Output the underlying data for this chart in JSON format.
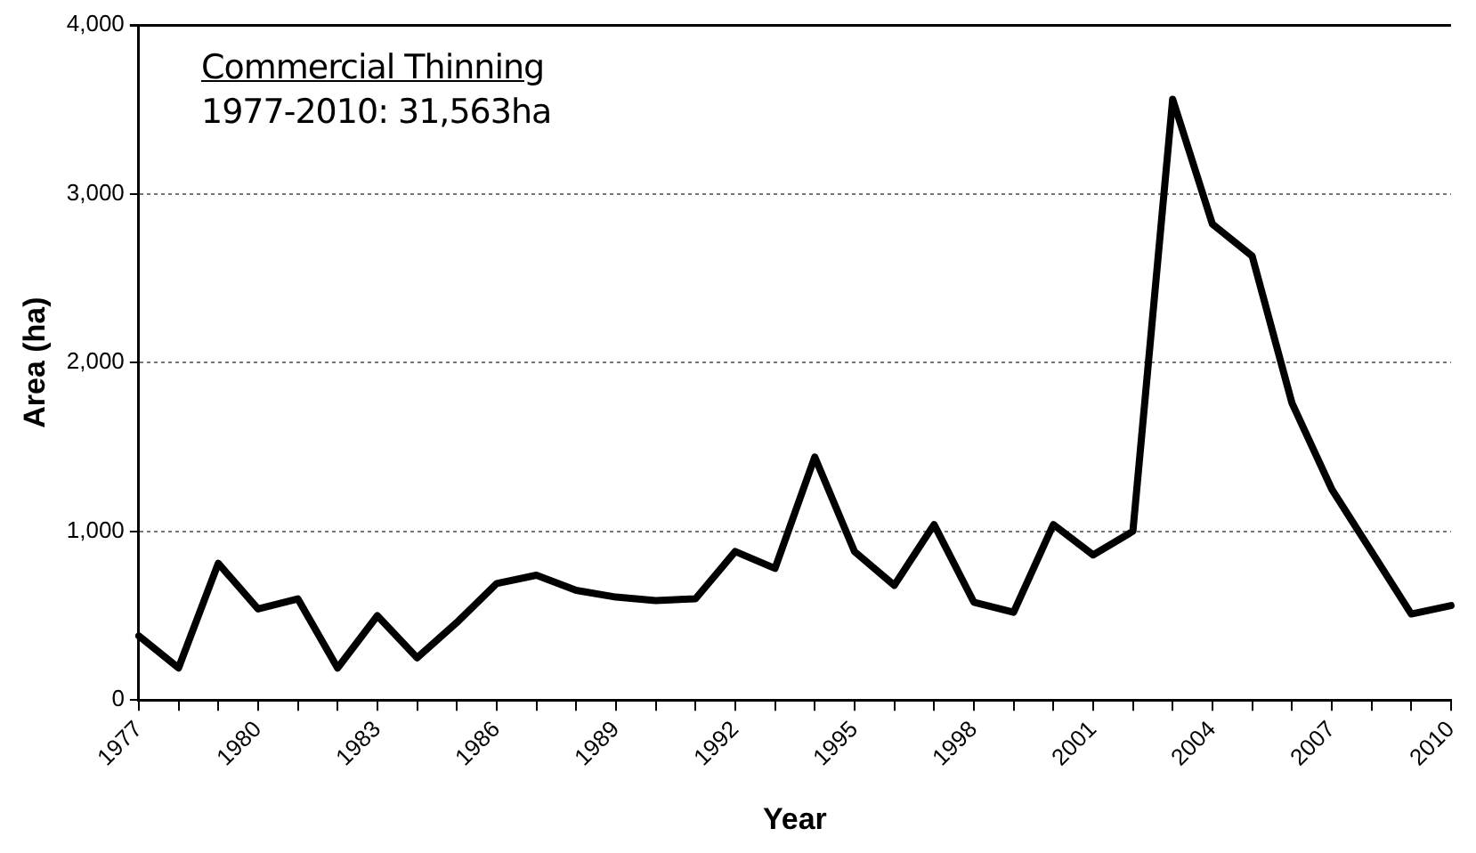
{
  "chart_data": {
    "type": "line",
    "title": "Commercial Thinning",
    "subtitle": "1977-2010: 31,563ha",
    "xlabel": "Year",
    "ylabel": "Area (ha)",
    "categories": [
      "1977",
      null,
      null,
      "1980",
      null,
      null,
      "1983",
      null,
      null,
      "1986",
      null,
      null,
      "1989",
      null,
      null,
      "1992",
      null,
      null,
      "1995",
      null,
      null,
      "1998",
      null,
      null,
      "2001",
      null,
      null,
      "2004",
      null,
      null,
      "2007",
      null,
      null,
      "2010"
    ],
    "series": [
      {
        "color": "#000000",
        "values": [
          380,
          190,
          810,
          540,
          600,
          190,
          500,
          250,
          460,
          690,
          740,
          650,
          610,
          590,
          600,
          880,
          780,
          1440,
          880,
          680,
          1040,
          580,
          520,
          1040,
          860,
          1000,
          3560,
          2820,
          2630,
          1760,
          1250,
          880,
          510,
          560
        ]
      }
    ],
    "ylim": [
      0,
      4000
    ],
    "yticks": [
      {
        "value": 0,
        "label": "0"
      },
      {
        "value": 1000,
        "label": "1,000"
      },
      {
        "value": 2000,
        "label": "2,000"
      },
      {
        "value": 3000,
        "label": "3,000"
      },
      {
        "value": 4000,
        "label": "4,000"
      }
    ],
    "grid": "y",
    "legend": false,
    "marker": "none",
    "line_style": "solid"
  }
}
